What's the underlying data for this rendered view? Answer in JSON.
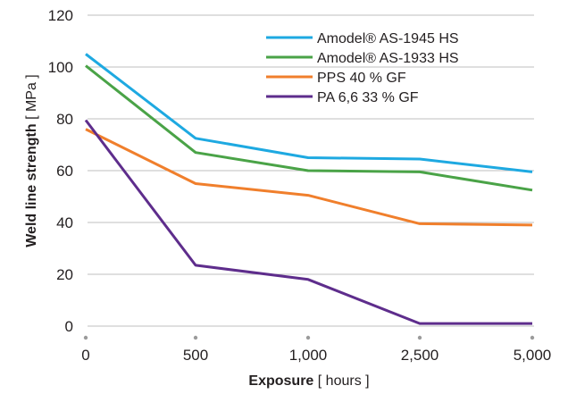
{
  "chart_data": {
    "type": "line",
    "x": [
      "0",
      "500",
      "1,000",
      "2,500",
      "5,000"
    ],
    "yticks": [
      "0",
      "20",
      "40",
      "60",
      "80",
      "100",
      "120"
    ],
    "ylim": [
      0,
      120
    ],
    "grid": true,
    "legend_position": "top-right",
    "xlabel": {
      "bold": "Exposure",
      "unit": "[ hours ]"
    },
    "ylabel": {
      "bold": "Weld line strength",
      "unit": "[ MPa ]"
    },
    "series": [
      {
        "name": "Amodel® AS-1945 HS",
        "color": "#1ea9e1",
        "values": [
          105,
          72.5,
          65,
          64.5,
          59.5
        ]
      },
      {
        "name": "Amodel® AS-1933 HS",
        "color": "#4aa347",
        "values": [
          100.5,
          67,
          60,
          59.5,
          52.5
        ]
      },
      {
        "name": "PPS 40 % GF",
        "color": "#f07f2c",
        "values": [
          76,
          55,
          50.5,
          39.5,
          39
        ]
      },
      {
        "name": "PA 6,6 33 % GF",
        "color": "#5e2d8c",
        "values": [
          79.5,
          23.5,
          18,
          1,
          1
        ]
      }
    ]
  }
}
